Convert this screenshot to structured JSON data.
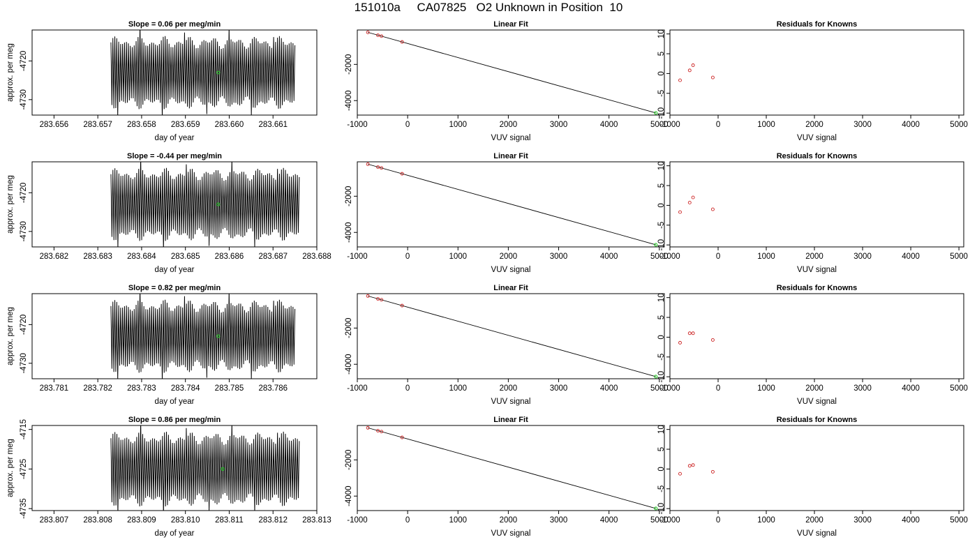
{
  "figure": {
    "title": "151010a     CA07825   O2 Unknown in Position  10"
  },
  "colors": {
    "trace": "#000000",
    "unknown_point": "#22cc22",
    "known_point": "#cc2222",
    "fit_line": "#000000"
  },
  "chart_data": [
    {
      "type": "line",
      "row": 0,
      "col": 0,
      "title": "Slope =  0.06  per meg/min",
      "xlabel": "day of year",
      "ylabel": "approx. per meg",
      "xlim": [
        283.6555,
        283.662
      ],
      "ylim": [
        -4734,
        -4712
      ],
      "xticks": [
        283.656,
        283.657,
        283.658,
        283.659,
        283.66,
        283.661
      ],
      "xtick_labels": [
        "283.656",
        "283.657",
        "283.658",
        "283.659",
        "283.660",
        "283.661"
      ],
      "yticks": [
        -4730,
        -4720
      ],
      "ytick_labels": [
        "-4730",
        "-4720"
      ],
      "trace": {
        "x_start": 283.6573,
        "x_end": 283.6615,
        "center": -4723,
        "amplitude": 9.5,
        "cycles": 95
      },
      "unknown_point": {
        "x": 283.65975,
        "y": -4723
      }
    },
    {
      "type": "line",
      "row": 0,
      "col": 1,
      "title": "Linear Fit",
      "xlabel": "VUV signal",
      "ylabel": "",
      "xlim": [
        -1000,
        5100
      ],
      "ylim": [
        -4800,
        -100
      ],
      "xticks": [
        -1000,
        0,
        1000,
        2000,
        3000,
        4000,
        5000
      ],
      "xtick_labels": [
        "-1000",
        "0",
        "1000",
        "2000",
        "3000",
        "4000",
        "5000"
      ],
      "yticks": [
        -4000,
        -2000
      ],
      "ytick_labels": [
        "-4000",
        "-2000"
      ],
      "fit_line": {
        "x": [
          -790,
          4930
        ],
        "y": [
          -230,
          -4680
        ]
      },
      "known_points": {
        "x": [
          -790,
          -590,
          -520,
          -110
        ],
        "y": [
          -230,
          -390,
          -440,
          -760
        ]
      },
      "unknown_point": {
        "x": 4930,
        "y": -4680
      }
    },
    {
      "type": "scatter",
      "row": 0,
      "col": 2,
      "title": "Residuals for Knowns",
      "xlabel": "VUV signal",
      "ylabel": "",
      "xlim": [
        -1000,
        5100
      ],
      "ylim": [
        -10.5,
        11
      ],
      "xticks": [
        -1000,
        0,
        1000,
        2000,
        3000,
        4000,
        5000
      ],
      "xtick_labels": [
        "-1000",
        "0",
        "1000",
        "2000",
        "3000",
        "4000",
        "5000"
      ],
      "yticks": [
        -10,
        -5,
        0,
        5,
        10
      ],
      "ytick_labels": [
        "-10",
        "-5",
        "0",
        "5",
        "10"
      ],
      "points": {
        "x": [
          -790,
          -590,
          -520,
          -110
        ],
        "y": [
          -1.7,
          0.8,
          2.1,
          -1.0
        ]
      }
    },
    {
      "type": "line",
      "row": 1,
      "col": 0,
      "title": "Slope =  -0.44  per meg/min",
      "xlabel": "day of year",
      "ylabel": "approx. per meg",
      "xlim": [
        283.6815,
        283.688
      ],
      "ylim": [
        -4734,
        -4712
      ],
      "xticks": [
        283.682,
        283.683,
        283.684,
        283.685,
        283.686,
        283.687,
        283.688
      ],
      "xtick_labels": [
        "283.682",
        "283.683",
        "283.684",
        "283.685",
        "283.686",
        "283.687",
        "283.688"
      ],
      "yticks": [
        -4730,
        -4720
      ],
      "ytick_labels": [
        "-4730",
        "-4720"
      ],
      "trace": {
        "x_start": 283.6833,
        "x_end": 283.6876,
        "center": -4723,
        "amplitude": 9.5,
        "cycles": 95
      },
      "unknown_point": {
        "x": 283.68575,
        "y": -4723
      }
    },
    {
      "type": "line",
      "row": 1,
      "col": 1,
      "title": "Linear Fit",
      "xlabel": "VUV signal",
      "ylabel": "",
      "xlim": [
        -1000,
        5100
      ],
      "ylim": [
        -4800,
        -100
      ],
      "xticks": [
        -1000,
        0,
        1000,
        2000,
        3000,
        4000,
        5000
      ],
      "xtick_labels": [
        "-1000",
        "0",
        "1000",
        "2000",
        "3000",
        "4000",
        "5000"
      ],
      "yticks": [
        -4000,
        -2000
      ],
      "ytick_labels": [
        "-4000",
        "-2000"
      ],
      "fit_line": {
        "x": [
          -790,
          4930
        ],
        "y": [
          -230,
          -4680
        ]
      },
      "known_points": {
        "x": [
          -790,
          -590,
          -520,
          -110
        ],
        "y": [
          -230,
          -390,
          -440,
          -760
        ]
      },
      "unknown_point": {
        "x": 4930,
        "y": -4680
      }
    },
    {
      "type": "scatter",
      "row": 1,
      "col": 2,
      "title": "Residuals for Knowns",
      "xlabel": "VUV signal",
      "ylabel": "",
      "xlim": [
        -1000,
        5100
      ],
      "ylim": [
        -10.5,
        11
      ],
      "xticks": [
        -1000,
        0,
        1000,
        2000,
        3000,
        4000,
        5000
      ],
      "xtick_labels": [
        "-1000",
        "0",
        "1000",
        "2000",
        "3000",
        "4000",
        "5000"
      ],
      "yticks": [
        -10,
        -5,
        0,
        5,
        10
      ],
      "ytick_labels": [
        "-10",
        "-5",
        "0",
        "5",
        "10"
      ],
      "points": {
        "x": [
          -790,
          -590,
          -520,
          -110
        ],
        "y": [
          -1.7,
          0.7,
          2.0,
          -1.0
        ]
      }
    },
    {
      "type": "line",
      "row": 2,
      "col": 0,
      "title": "Slope =  0.82  per meg/min",
      "xlabel": "day of year",
      "ylabel": "approx. per meg",
      "xlim": [
        283.7805,
        283.787
      ],
      "ylim": [
        -4734,
        -4712
      ],
      "xticks": [
        283.781,
        283.782,
        283.783,
        283.784,
        283.785,
        283.786
      ],
      "xtick_labels": [
        "283.781",
        "283.782",
        "283.783",
        "283.784",
        "283.785",
        "283.786"
      ],
      "yticks": [
        -4730,
        -4720
      ],
      "ytick_labels": [
        "-4730",
        "-4720"
      ],
      "trace": {
        "x_start": 283.7823,
        "x_end": 283.7865,
        "center": -4723,
        "amplitude": 9.5,
        "cycles": 95
      },
      "unknown_point": {
        "x": 283.78475,
        "y": -4723
      }
    },
    {
      "type": "line",
      "row": 2,
      "col": 1,
      "title": "Linear Fit",
      "xlabel": "VUV signal",
      "ylabel": "",
      "xlim": [
        -1000,
        5100
      ],
      "ylim": [
        -4800,
        -100
      ],
      "xticks": [
        -1000,
        0,
        1000,
        2000,
        3000,
        4000,
        5000
      ],
      "xtick_labels": [
        "-1000",
        "0",
        "1000",
        "2000",
        "3000",
        "4000",
        "5000"
      ],
      "yticks": [
        -4000,
        -2000
      ],
      "ytick_labels": [
        "-4000",
        "-2000"
      ],
      "fit_line": {
        "x": [
          -790,
          4930
        ],
        "y": [
          -230,
          -4680
        ]
      },
      "known_points": {
        "x": [
          -790,
          -590,
          -520,
          -110
        ],
        "y": [
          -230,
          -390,
          -440,
          -760
        ]
      },
      "unknown_point": {
        "x": 4930,
        "y": -4680
      }
    },
    {
      "type": "scatter",
      "row": 2,
      "col": 2,
      "title": "Residuals for Knowns",
      "xlabel": "VUV signal",
      "ylabel": "",
      "xlim": [
        -1000,
        5100
      ],
      "ylim": [
        -10.5,
        11
      ],
      "xticks": [
        -1000,
        0,
        1000,
        2000,
        3000,
        4000,
        5000
      ],
      "xtick_labels": [
        "-1000",
        "0",
        "1000",
        "2000",
        "3000",
        "4000",
        "5000"
      ],
      "yticks": [
        -10,
        -5,
        0,
        5,
        10
      ],
      "ytick_labels": [
        "-10",
        "-5",
        "0",
        "5",
        "10"
      ],
      "points": {
        "x": [
          -790,
          -590,
          -520,
          -110
        ],
        "y": [
          -1.4,
          1.0,
          1.0,
          -0.7
        ]
      }
    },
    {
      "type": "line",
      "row": 3,
      "col": 0,
      "title": "Slope =  0.86  per meg/min",
      "xlabel": "day of year",
      "ylabel": "approx. per meg",
      "xlim": [
        283.8065,
        283.813
      ],
      "ylim": [
        -4735.5,
        -4714
      ],
      "xticks": [
        283.807,
        283.808,
        283.809,
        283.81,
        283.811,
        283.812,
        283.813
      ],
      "xtick_labels": [
        "283.807",
        "283.808",
        "283.809",
        "283.810",
        "283.811",
        "283.812",
        "283.813"
      ],
      "yticks": [
        -4735,
        -4725,
        -4715
      ],
      "ytick_labels": [
        "-4735",
        "-4725",
        "-4715"
      ],
      "trace": {
        "x_start": 283.8083,
        "x_end": 283.8126,
        "center": -4725,
        "amplitude": 9.5,
        "cycles": 95
      },
      "unknown_point": {
        "x": 283.81085,
        "y": -4725
      }
    },
    {
      "type": "line",
      "row": 3,
      "col": 1,
      "title": "Linear Fit",
      "xlabel": "VUV signal",
      "ylabel": "",
      "xlim": [
        -1000,
        5100
      ],
      "ylim": [
        -4800,
        -100
      ],
      "xticks": [
        -1000,
        0,
        1000,
        2000,
        3000,
        4000,
        5000
      ],
      "xtick_labels": [
        "-1000",
        "0",
        "1000",
        "2000",
        "3000",
        "4000",
        "5000"
      ],
      "yticks": [
        -4000,
        -2000
      ],
      "ytick_labels": [
        "-4000",
        "-2000"
      ],
      "fit_line": {
        "x": [
          -790,
          4930
        ],
        "y": [
          -230,
          -4680
        ]
      },
      "known_points": {
        "x": [
          -790,
          -590,
          -520,
          -110
        ],
        "y": [
          -230,
          -390,
          -440,
          -760
        ]
      },
      "unknown_point": {
        "x": 4930,
        "y": -4680
      }
    },
    {
      "type": "scatter",
      "row": 3,
      "col": 2,
      "title": "Residuals for Knowns",
      "xlabel": "VUV signal",
      "ylabel": "",
      "xlim": [
        -1000,
        5100
      ],
      "ylim": [
        -10.5,
        11
      ],
      "xticks": [
        -1000,
        0,
        1000,
        2000,
        3000,
        4000,
        5000
      ],
      "xtick_labels": [
        "-1000",
        "0",
        "1000",
        "2000",
        "3000",
        "4000",
        "5000"
      ],
      "yticks": [
        -10,
        -5,
        0,
        5,
        10
      ],
      "ytick_labels": [
        "-10",
        "-5",
        "0",
        "5",
        "10"
      ],
      "points": {
        "x": [
          -790,
          -590,
          -520,
          -110
        ],
        "y": [
          -1.2,
          0.8,
          1.0,
          -0.7
        ]
      }
    }
  ]
}
